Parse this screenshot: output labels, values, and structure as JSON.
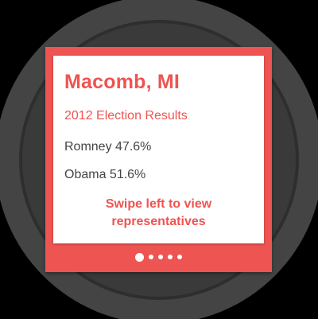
{
  "card": {
    "title": "Macomb, MI",
    "subtitle": "2012 Election Results",
    "results": [
      {
        "text": "Romney 47.6%"
      },
      {
        "text": "Obama 51.6%"
      }
    ],
    "hint_line1": "Swipe left to view",
    "hint_line2": "representatives"
  },
  "pager": {
    "page_count": 5,
    "active_index": 0
  },
  "colors": {
    "accent": "#ee5451",
    "card_background": "#ffffff",
    "body_text": "#444444",
    "screen_background": "#000000"
  }
}
